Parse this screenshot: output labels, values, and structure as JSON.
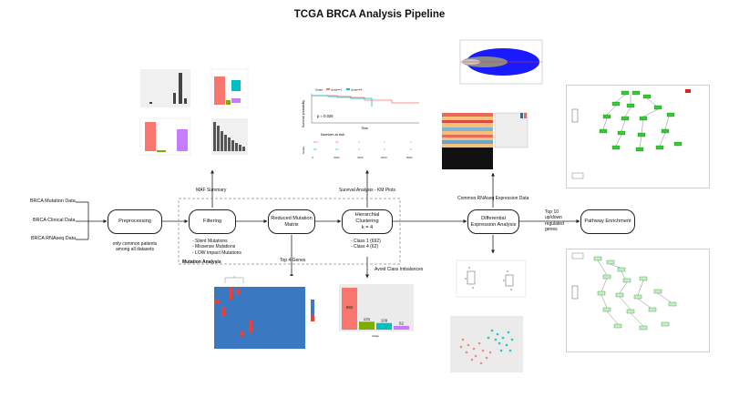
{
  "title": "TCGA BRCA Analysis Pipeline",
  "inputs": [
    "BRCA Mutation Data",
    "BRCA Clinical Data",
    "BRCA RNAseq Data"
  ],
  "nodes": {
    "preprocessing": "Preprocessing",
    "filtering": "Filtering",
    "reduced_matrix": "Reduced Mutation Matrix",
    "clustering_line1": "Hierarchial Clustering",
    "clustering_line2": "k = 4",
    "dea": "Differential Expression Analysis",
    "pathway": "Pathway Enrichment"
  },
  "edge_labels": {
    "preprocessing_note": "only common patients among all datasets",
    "maf_summary": "MAF Summary",
    "survival": "Survival Analysis - KM Plots",
    "common_rnaseq": "Common RNAseq Expression Data",
    "top_genes": "Top 10 up/down regulated genes",
    "top4": "Top 4 Genes",
    "avoid_imbalance": "Avoid Class Imbalances",
    "mutation_analysis": "Mutation Analysis"
  },
  "filtering_notes": [
    "- Silent Mutations",
    "- Missense Mutations",
    "- LOW Impact Mutations"
  ],
  "cluster_classes": [
    "- Class 1 (692)",
    "- Class 4 (62)"
  ],
  "km_plot": {
    "pvalue": "p = 0.026",
    "ylabel": "Survival probability",
    "xlabel": "Time",
    "risk_title": "Number at risk",
    "strata_label": "Strata",
    "x_ticks": [
      "0",
      "2000",
      "4000",
      "6000",
      "8000"
    ],
    "legend": [
      "Strata",
      "cluster=1",
      "cluster=4"
    ],
    "colors": [
      "#f8766d",
      "#00bfc4"
    ]
  },
  "class_bar_chart": {
    "values": [
      692,
      131,
      109,
      62
    ],
    "colors": [
      "#f8766d",
      "#7cae00",
      "#00bfc4",
      "#c77cff"
    ],
    "xlabel": "Class"
  },
  "colors": {
    "box_border": "#222222",
    "dashed": "#888888",
    "heat_bg": "#3a78c2",
    "heat_hit": "#e8403a",
    "pathway_node": "#33cc33",
    "ma_points": "#1a1aff"
  }
}
